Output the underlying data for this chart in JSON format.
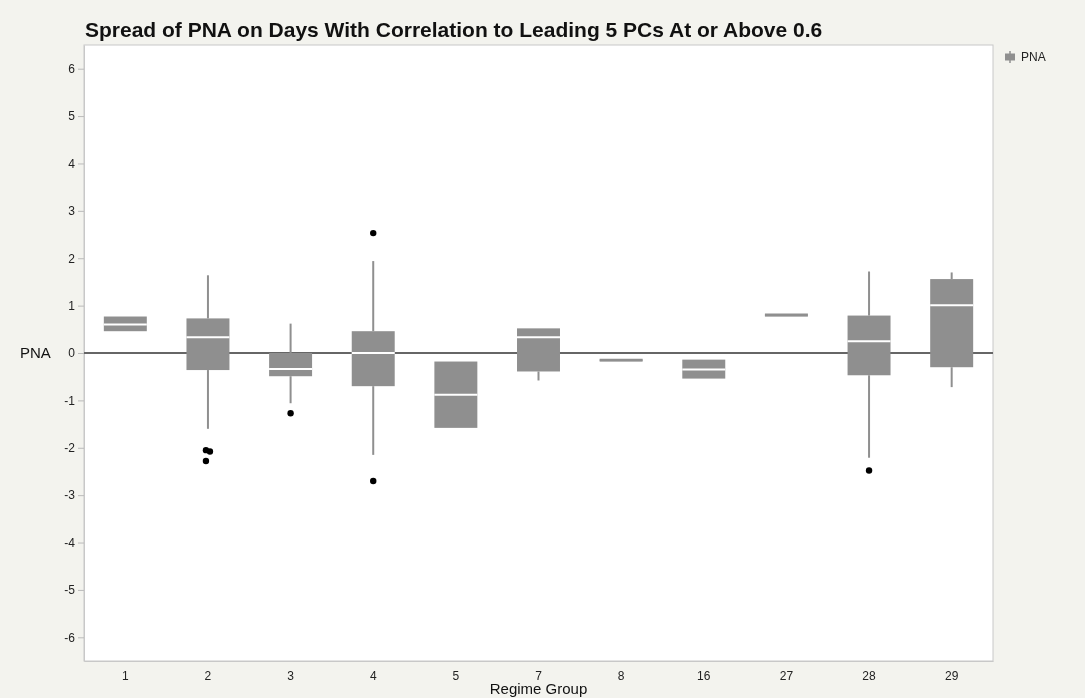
{
  "chart_data": {
    "type": "box",
    "title": "Spread of PNA on Days With Correlation to Leading 5 PCs At or Above 0.6",
    "xlabel": "Regime Group",
    "categories": [
      "1",
      "2",
      "3",
      "4",
      "5",
      "7",
      "8",
      "16",
      "27",
      "28",
      "29"
    ],
    "series": [
      {
        "name": "PNA",
        "color": "#8f8f8f",
        "boxes": [
          {
            "low": 0.46,
            "q1": 0.46,
            "median": 0.6,
            "q3": 0.77,
            "high": 0.77
          },
          {
            "low": -1.6,
            "q1": -0.36,
            "median": 0.33,
            "q3": 0.73,
            "high": 1.64,
            "outliers": [
              -2.05,
              -2.08,
              -2.28
            ]
          },
          {
            "low": -1.06,
            "q1": -0.49,
            "median": -0.34,
            "q3": 0.0,
            "high": 0.62,
            "outliers": [
              -1.27
            ]
          },
          {
            "low": -2.15,
            "q1": -0.7,
            "median": 0.0,
            "q3": 0.46,
            "high": 1.94,
            "outliers": [
              2.53,
              -2.7
            ]
          },
          {
            "low": -1.58,
            "q1": -1.58,
            "median": -0.88,
            "q3": -0.18,
            "high": -0.18
          },
          {
            "low": -0.58,
            "q1": -0.39,
            "median": 0.33,
            "q3": 0.52,
            "high": 0.52
          },
          {
            "low": -0.14,
            "q1": -0.14,
            "median": -0.14,
            "q3": -0.14,
            "high": -0.14
          },
          {
            "low": -0.54,
            "q1": -0.54,
            "median": -0.35,
            "q3": -0.14,
            "high": -0.14
          },
          {
            "low": 0.81,
            "q1": 0.81,
            "median": 0.81,
            "q3": 0.81,
            "high": 0.81
          },
          {
            "low": -2.21,
            "q1": -0.47,
            "median": 0.25,
            "q3": 0.79,
            "high": 1.72,
            "outliers": [
              -2.48
            ]
          },
          {
            "low": -0.72,
            "q1": -0.3,
            "median": 1.01,
            "q3": 1.56,
            "high": 1.7
          }
        ]
      }
    ],
    "ylim": [
      -6.5,
      6.5
    ],
    "yticks": [
      -6,
      -5,
      -4,
      -3,
      -2,
      -1,
      0,
      1,
      2,
      3,
      4,
      5,
      6
    ],
    "ref_lines": [
      {
        "axis": "y",
        "value": 0,
        "label": "PNA",
        "color": "#666666"
      }
    ],
    "legend": "top right"
  }
}
